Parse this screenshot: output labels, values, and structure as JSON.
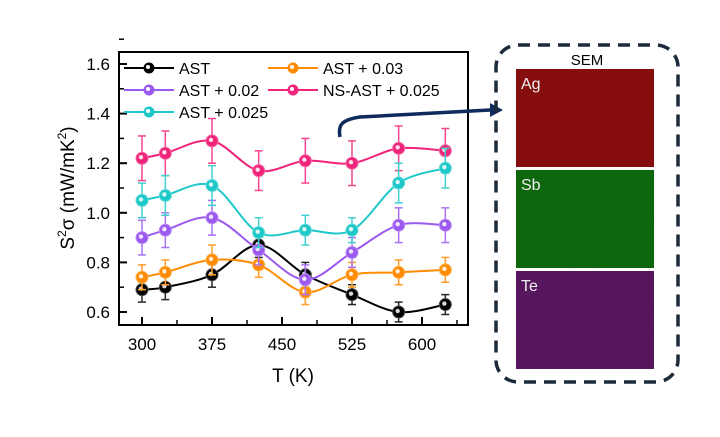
{
  "chart_data": {
    "type": "line",
    "xlabel": "T (K)",
    "ylabel_main": "S",
    "ylabel_sup": "2",
    "ylabel_rest": "σ (mW/mK",
    "ylabel_sup2": "2",
    "ylabel_end": ")",
    "xlim": [
      290,
      640
    ],
    "ylim": [
      0.56,
      1.65
    ],
    "xticks": [
      300,
      375,
      450,
      525,
      600
    ],
    "yticks": [
      0.6,
      0.8,
      1.0,
      1.2,
      1.4,
      1.6
    ],
    "ytick_labels": [
      "0.6",
      "0.8",
      "1.0",
      "1.2",
      "1.4",
      "1.6"
    ],
    "xtick_labels": [
      "300",
      "375",
      "450",
      "525",
      "600"
    ],
    "legend_position": "top-left",
    "x": [
      300,
      325,
      375,
      425,
      475,
      525,
      575,
      625
    ],
    "series": [
      {
        "name": "AST",
        "color": "#000000",
        "values": [
          0.69,
          0.7,
          0.75,
          0.87,
          0.75,
          0.67,
          0.6,
          0.63
        ],
        "errors": [
          0.05,
          0.05,
          0.05,
          0.05,
          0.05,
          0.04,
          0.04,
          0.04
        ]
      },
      {
        "name": "AST + 0.03",
        "color": "#ff8c00",
        "values": [
          0.74,
          0.76,
          0.81,
          0.79,
          0.68,
          0.75,
          0.76,
          0.77
        ],
        "errors": [
          0.05,
          0.05,
          0.06,
          0.05,
          0.05,
          0.05,
          0.05,
          0.05
        ]
      },
      {
        "name": "AST + 0.02",
        "color": "#9b59f0",
        "values": [
          0.9,
          0.93,
          0.98,
          0.85,
          0.73,
          0.84,
          0.95,
          0.95
        ],
        "errors": [
          0.07,
          0.07,
          0.07,
          0.06,
          0.06,
          0.06,
          0.07,
          0.07
        ]
      },
      {
        "name": "NS-AST + 0.025",
        "color": "#f0247a",
        "values": [
          1.22,
          1.24,
          1.29,
          1.17,
          1.21,
          1.2,
          1.26,
          1.25
        ],
        "errors": [
          0.09,
          0.09,
          0.09,
          0.08,
          0.09,
          0.09,
          0.09,
          0.09
        ]
      },
      {
        "name": "AST + 0.025",
        "color": "#1ec8c8",
        "values": [
          1.05,
          1.07,
          1.11,
          0.92,
          0.93,
          0.93,
          1.12,
          1.18
        ],
        "errors": [
          0.07,
          0.08,
          0.08,
          0.06,
          0.06,
          0.05,
          0.08,
          0.08
        ]
      }
    ]
  },
  "sem_panel": {
    "title": "SEM",
    "maps": [
      {
        "label": "Ag",
        "color": "#8a0d12"
      },
      {
        "label": "Sb",
        "color": "#0f6a12"
      },
      {
        "label": "Te",
        "color": "#5a1460"
      }
    ],
    "border_color": "#1c2a3a",
    "arrow_color": "#0f2a5c"
  }
}
